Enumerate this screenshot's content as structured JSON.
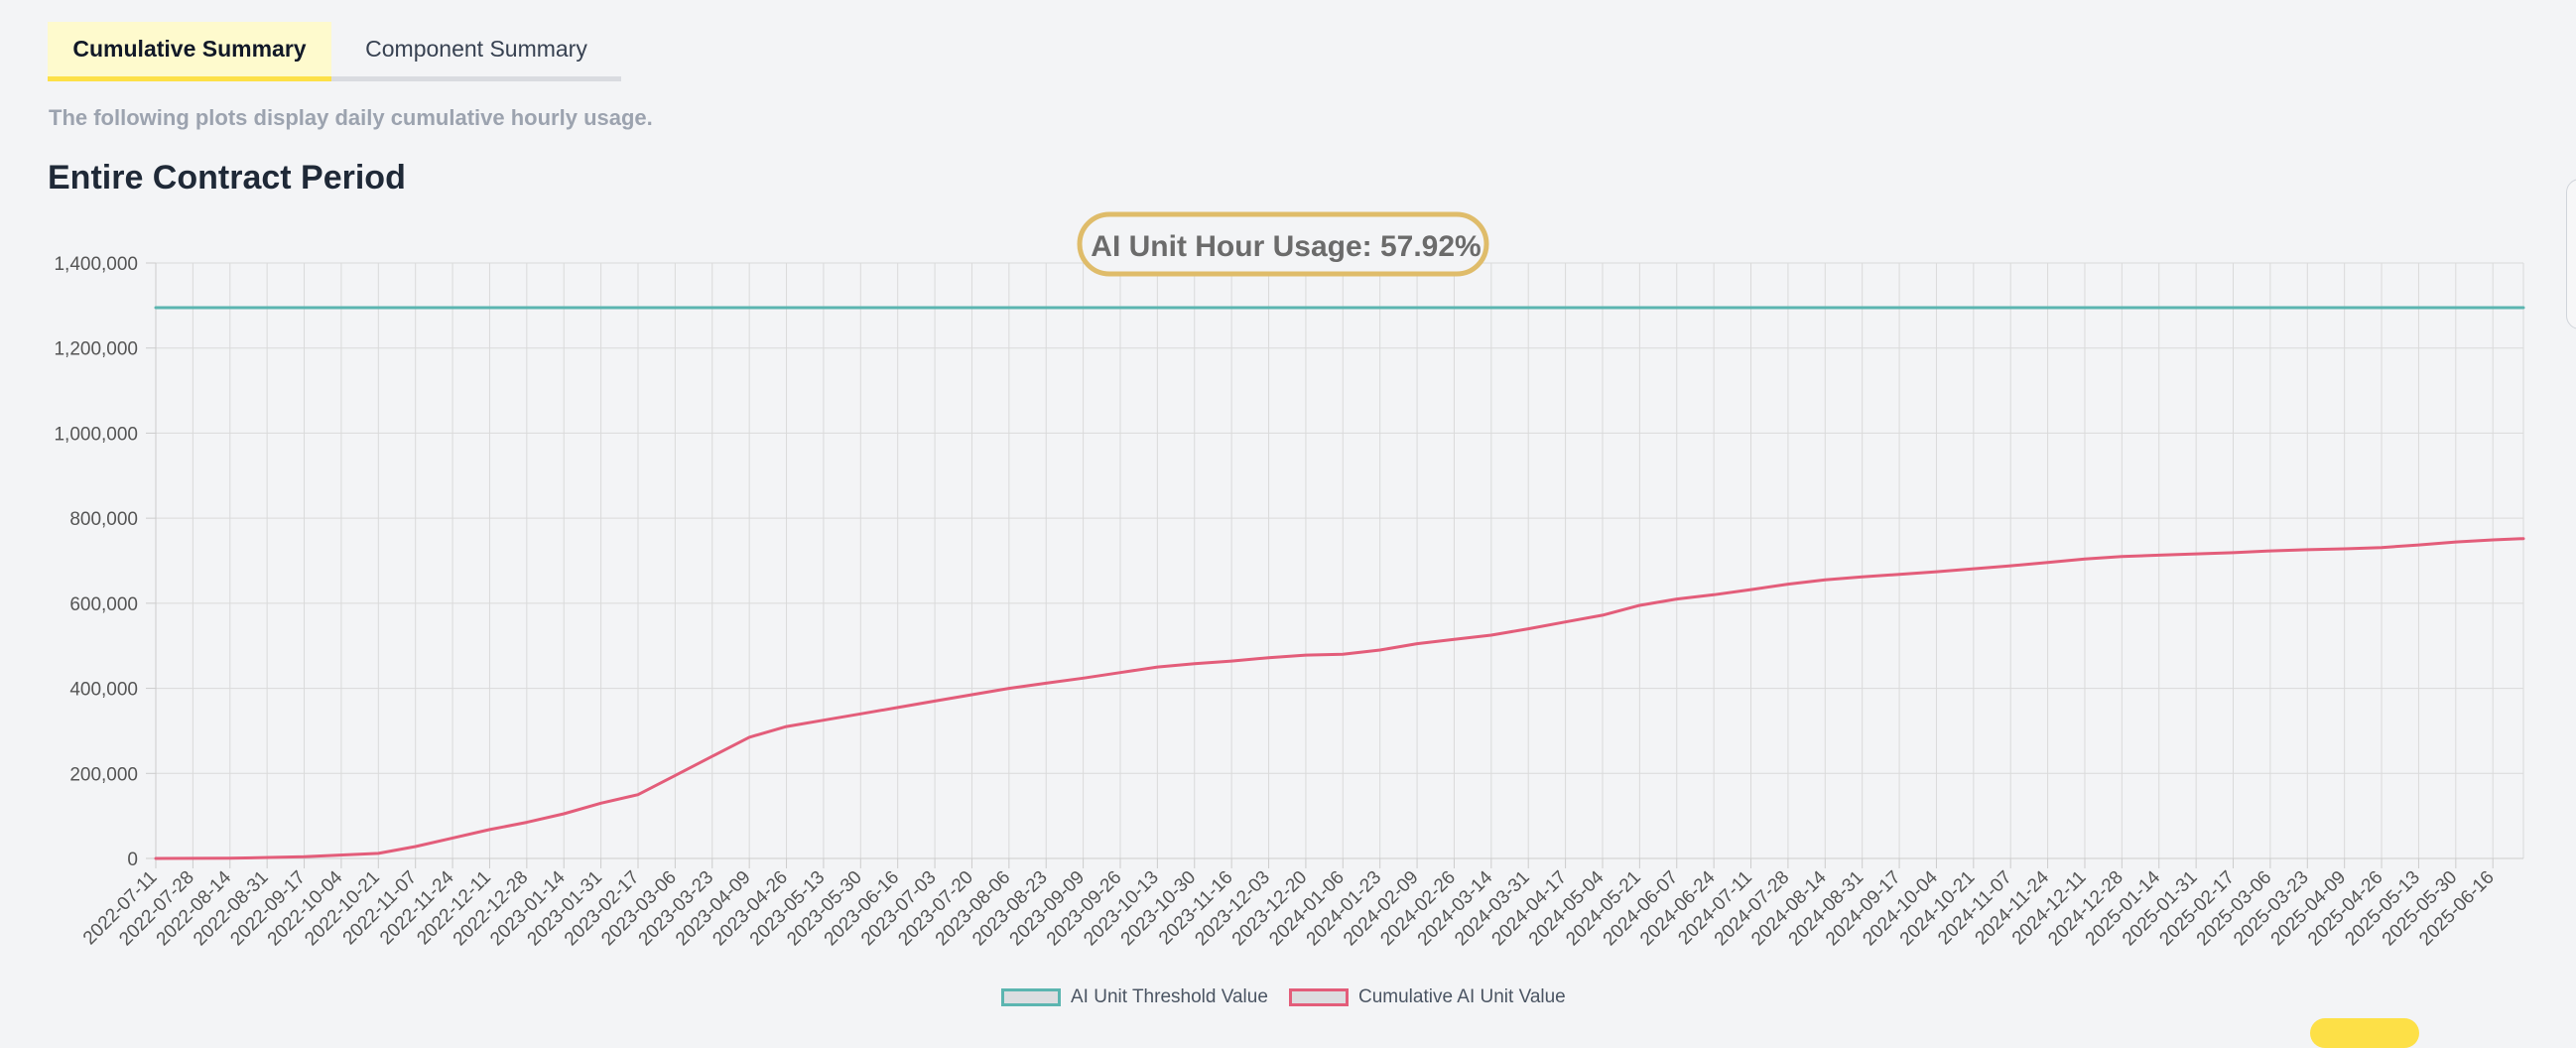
{
  "tabs": [
    {
      "label": "Cumulative Summary",
      "active": true
    },
    {
      "label": "Component Summary",
      "active": false
    }
  ],
  "description": "The following plots display daily cumulative hourly usage.",
  "section_title": "Entire Contract Period",
  "colors": {
    "threshold": "#5bb5b0",
    "cumulative": "#e35d7a",
    "badge_border": "#dfbc6a",
    "active_tab_bg": "#fefacd",
    "active_tab_border": "#fde047"
  },
  "chart_data": {
    "type": "line",
    "title": "AI Unit Hour Usage: 57.92%",
    "x_type": "date",
    "x_range": [
      "2022-07-11",
      "2025-06-30"
    ],
    "x_tick_labels": [
      "2022-07-11",
      "2022-07-28",
      "2022-08-14",
      "2022-08-31",
      "2022-09-17",
      "2022-10-04",
      "2022-10-21",
      "2022-11-07",
      "2022-11-24",
      "2022-12-11",
      "2022-12-28",
      "2023-01-14",
      "2023-01-31",
      "2023-02-17",
      "2023-03-06",
      "2023-03-23",
      "2023-04-09",
      "2023-04-26",
      "2023-05-13",
      "2023-05-30",
      "2023-06-16",
      "2023-07-03",
      "2023-07-20",
      "2023-08-06",
      "2023-08-23",
      "2023-09-09",
      "2023-09-26",
      "2023-10-13",
      "2023-10-30",
      "2023-11-16",
      "2023-12-03",
      "2023-12-20",
      "2024-01-06",
      "2024-01-23",
      "2024-02-09",
      "2024-02-26",
      "2024-03-14",
      "2024-03-31",
      "2024-04-17",
      "2024-05-04",
      "2024-05-21",
      "2024-06-07",
      "2024-06-24",
      "2024-07-11",
      "2024-07-28",
      "2024-08-14",
      "2024-08-31",
      "2024-09-17",
      "2024-10-04",
      "2024-10-21",
      "2024-11-07",
      "2024-11-24",
      "2024-12-11",
      "2024-12-28",
      "2025-01-14",
      "2025-01-31",
      "2025-02-17",
      "2025-03-06",
      "2025-03-23",
      "2025-04-09",
      "2025-04-26",
      "2025-05-13",
      "2025-05-30",
      "2025-06-16"
    ],
    "y_ticks": [
      0,
      200000,
      400000,
      600000,
      800000,
      1000000,
      1200000,
      1400000
    ],
    "y_tick_labels": [
      "0",
      "200,000",
      "400,000",
      "600,000",
      "800,000",
      "1,000,000",
      "1,200,000",
      "1,400,000"
    ],
    "ylim": [
      0,
      1400000
    ],
    "grid": true,
    "legend_position": "bottom",
    "series": [
      {
        "name": "AI Unit Threshold Value",
        "points": [
          [
            "2022-07-11",
            1295000
          ],
          [
            "2025-06-30",
            1295000
          ]
        ]
      },
      {
        "name": "Cumulative AI Unit Value",
        "points": [
          [
            "2022-07-11",
            0
          ],
          [
            "2022-08-14",
            500
          ],
          [
            "2022-09-17",
            4000
          ],
          [
            "2022-10-21",
            12000
          ],
          [
            "2022-11-07",
            28000
          ],
          [
            "2022-11-24",
            48000
          ],
          [
            "2022-12-11",
            68000
          ],
          [
            "2022-12-28",
            85000
          ],
          [
            "2023-01-14",
            105000
          ],
          [
            "2023-01-31",
            130000
          ],
          [
            "2023-02-17",
            150000
          ],
          [
            "2023-03-06",
            195000
          ],
          [
            "2023-03-23",
            240000
          ],
          [
            "2023-04-09",
            285000
          ],
          [
            "2023-04-26",
            310000
          ],
          [
            "2023-05-13",
            325000
          ],
          [
            "2023-05-30",
            340000
          ],
          [
            "2023-06-16",
            355000
          ],
          [
            "2023-07-03",
            370000
          ],
          [
            "2023-07-20",
            385000
          ],
          [
            "2023-08-06",
            400000
          ],
          [
            "2023-08-23",
            412000
          ],
          [
            "2023-09-09",
            424000
          ],
          [
            "2023-09-26",
            437000
          ],
          [
            "2023-10-13",
            450000
          ],
          [
            "2023-10-30",
            458000
          ],
          [
            "2023-11-16",
            464000
          ],
          [
            "2023-12-03",
            472000
          ],
          [
            "2023-12-20",
            478000
          ],
          [
            "2024-01-06",
            480000
          ],
          [
            "2024-01-23",
            490000
          ],
          [
            "2024-02-09",
            505000
          ],
          [
            "2024-02-26",
            515000
          ],
          [
            "2024-03-14",
            525000
          ],
          [
            "2024-03-31",
            540000
          ],
          [
            "2024-04-17",
            556000
          ],
          [
            "2024-05-04",
            572000
          ],
          [
            "2024-05-21",
            595000
          ],
          [
            "2024-06-07",
            610000
          ],
          [
            "2024-06-24",
            620000
          ],
          [
            "2024-07-11",
            632000
          ],
          [
            "2024-07-28",
            645000
          ],
          [
            "2024-08-14",
            655000
          ],
          [
            "2024-08-31",
            662000
          ],
          [
            "2024-09-17",
            668000
          ],
          [
            "2024-10-04",
            674000
          ],
          [
            "2024-10-21",
            681000
          ],
          [
            "2024-11-07",
            688000
          ],
          [
            "2024-11-24",
            696000
          ],
          [
            "2024-12-11",
            704000
          ],
          [
            "2024-12-28",
            710000
          ],
          [
            "2025-01-14",
            713000
          ],
          [
            "2025-01-31",
            716000
          ],
          [
            "2025-02-17",
            719000
          ],
          [
            "2025-03-06",
            723000
          ],
          [
            "2025-03-23",
            726000
          ],
          [
            "2025-04-09",
            728000
          ],
          [
            "2025-04-26",
            731000
          ],
          [
            "2025-05-13",
            737000
          ],
          [
            "2025-05-30",
            744000
          ],
          [
            "2025-06-16",
            749000
          ],
          [
            "2025-06-30",
            752000
          ]
        ]
      }
    ]
  }
}
